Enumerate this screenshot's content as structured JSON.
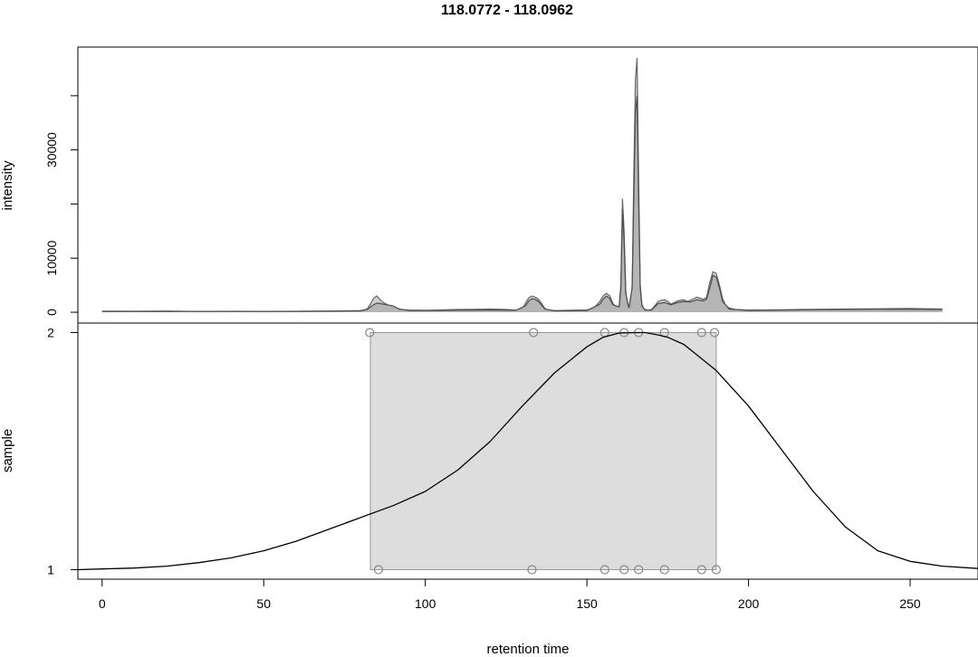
{
  "chart_data": {
    "type": "line",
    "title": "118.0772 - 118.0962",
    "xlabel": "retention time",
    "xlim": [
      -7.5,
      271
    ],
    "x_ticks": [
      0,
      50,
      100,
      150,
      200,
      250
    ],
    "panels": [
      {
        "name": "chromatogram",
        "type": "area",
        "ylabel": "intensity",
        "ylim": [
          -2000,
          49000
        ],
        "y_ticks": [
          0,
          10000,
          30000
        ],
        "grid": false,
        "series": [
          {
            "color": "#666666",
            "fill": "#c8c8c8",
            "x": [
              0,
              10,
              20,
              27,
              33,
              40,
              50,
              60,
              70,
              75,
              80,
              82,
              83,
              84,
              85,
              86,
              87,
              88,
              89,
              90,
              92,
              95,
              100,
              105,
              110,
              115,
              120,
              125,
              128,
              130,
              131,
              132,
              133,
              134,
              135,
              136,
              137,
              138,
              140,
              145,
              150,
              152,
              154,
              155,
              156,
              157,
              158,
              159,
              160,
              160.5,
              161,
              161.5,
              162,
              162.5,
              163,
              163.5,
              164,
              164.5,
              165,
              165.5,
              166,
              166.5,
              167,
              167.5,
              168,
              169,
              170,
              171,
              172,
              173,
              174,
              175,
              176,
              177,
              178,
              179,
              180,
              181,
              182,
              183,
              184,
              185,
              186,
              187,
              188,
              189,
              190,
              191,
              192,
              193,
              194,
              196,
              200,
              210,
              220,
              230,
              240,
              250,
              260
            ],
            "y": [
              200,
              180,
              220,
              150,
              150,
              180,
              160,
              170,
              200,
              250,
              300,
              600,
              1500,
              2600,
              3000,
              2300,
              1800,
              1500,
              1100,
              900,
              500,
              400,
              350,
              420,
              500,
              550,
              600,
              500,
              400,
              600,
              1700,
              2700,
              3000,
              2800,
              2400,
              1600,
              700,
              400,
              300,
              350,
              450,
              700,
              2000,
              3000,
              3500,
              3100,
              1700,
              800,
              1200,
              5000,
              21000,
              15000,
              4000,
              1200,
              900,
              1000,
              5000,
              25000,
              43000,
              47000,
              25000,
              5000,
              1500,
              800,
              500,
              400,
              500,
              1200,
              2000,
              2200,
              2300,
              2000,
              1500,
              1800,
              2100,
              2200,
              2300,
              2000,
              2200,
              2500,
              2800,
              2600,
              2400,
              2700,
              5500,
              7500,
              7200,
              5000,
              2500,
              1200,
              800,
              500,
              400,
              450,
              550,
              600,
              650,
              700,
              600
            ]
          },
          {
            "color": "#4d4d4d",
            "fill": "#b0b0b0",
            "x": [
              0,
              20,
              40,
              60,
              80,
              82,
              84,
              85,
              86,
              88,
              90,
              92,
              95,
              100,
              120,
              128,
              131,
              132,
              133,
              134,
              135,
              137,
              140,
              150,
              154,
              155,
              156,
              157,
              158,
              160,
              160.5,
              161,
              161.5,
              162,
              163,
              164,
              164.5,
              165,
              165.5,
              166,
              166.5,
              167,
              168,
              170,
              172,
              174,
              176,
              178,
              180,
              182,
              184,
              186,
              187,
              188,
              189,
              190,
              191,
              192,
              194,
              200,
              220,
              240,
              260
            ],
            "y": [
              150,
              150,
              140,
              150,
              250,
              500,
              1400,
              1700,
              1600,
              1400,
              1200,
              600,
              300,
              300,
              400,
              350,
              1200,
              2100,
              2500,
              2400,
              2000,
              600,
              250,
              300,
              1500,
              2400,
              3000,
              2600,
              1400,
              1000,
              4500,
              19000,
              13000,
              3500,
              800,
              4500,
              21000,
              37000,
              40000,
              21000,
              4500,
              1200,
              400,
              400,
              1600,
              1800,
              1400,
              1800,
              2000,
              1900,
              2300,
              2100,
              2400,
              4500,
              6800,
              6500,
              4500,
              2000,
              600,
              300,
              450,
              550,
              500
            ]
          }
        ]
      },
      {
        "name": "sample alignment",
        "type": "line",
        "ylabel": "sample",
        "ylim": [
          0.96,
          2.04
        ],
        "y_ticks": [
          1,
          2
        ],
        "grid": false,
        "rect": {
          "x": [
            83,
            190
          ],
          "y": [
            1,
            2
          ],
          "fill": "#dddddd",
          "stroke": "#999999"
        },
        "points_top": {
          "y": 2,
          "x": [
            82.8,
            133.5,
            155.5,
            161.5,
            166,
            174,
            185.5,
            189.5
          ]
        },
        "points_bottom": {
          "y": 1,
          "x": [
            85.5,
            133,
            155.5,
            161.5,
            166,
            174,
            185.5,
            190
          ]
        },
        "density_curve": {
          "color": "#000000",
          "x": [
            -7.5,
            0,
            10,
            20,
            30,
            40,
            50,
            60,
            70,
            80,
            85,
            90,
            100,
            110,
            120,
            130,
            140,
            150,
            155,
            160,
            165,
            168,
            172,
            175,
            180,
            190,
            200,
            210,
            220,
            230,
            240,
            250,
            260,
            271
          ],
          "y": [
            1.0,
            1.003,
            1.007,
            1.015,
            1.03,
            1.05,
            1.08,
            1.12,
            1.17,
            1.22,
            1.245,
            1.27,
            1.33,
            1.42,
            1.54,
            1.69,
            1.83,
            1.94,
            1.98,
            1.998,
            2.0,
            2.0,
            1.99,
            1.98,
            1.95,
            1.84,
            1.69,
            1.51,
            1.33,
            1.18,
            1.08,
            1.035,
            1.015,
            1.005
          ]
        }
      }
    ]
  }
}
